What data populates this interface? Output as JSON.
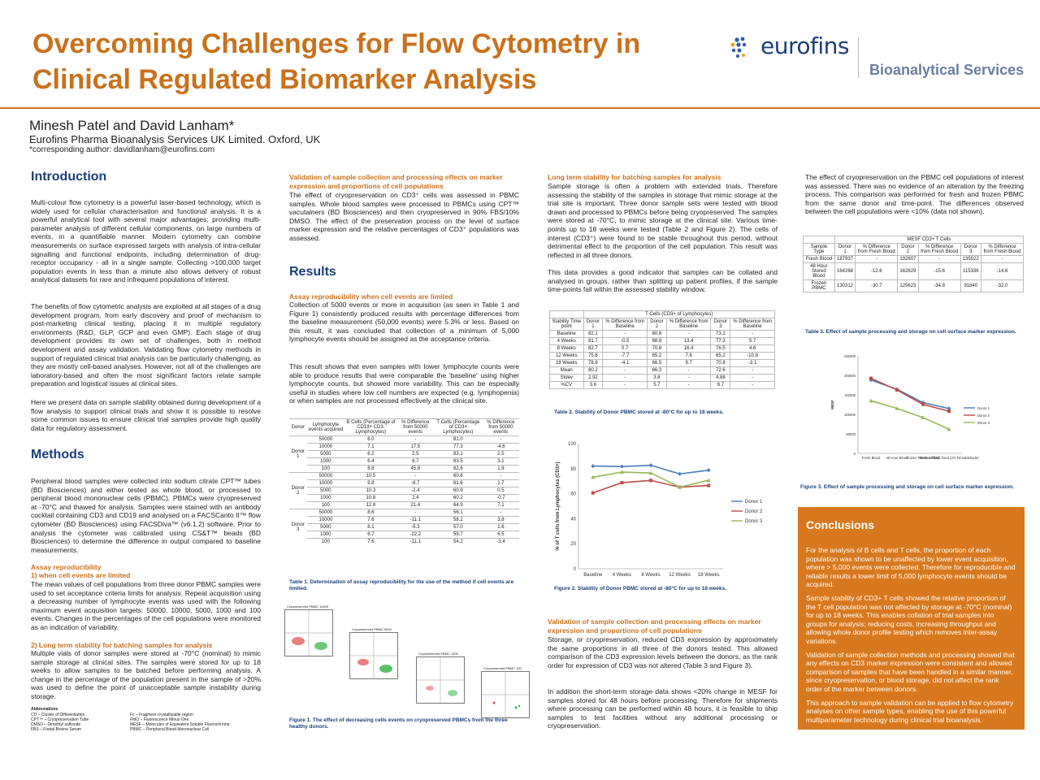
{
  "title_line1": "Overcoming Challenges for Flow Cytometry in",
  "title_line2": "Clinical Regulated Biomarker Analysis",
  "logo": {
    "brand": "eurofins",
    "division": "Bioanalytical Services"
  },
  "authors": "Minesh Patel and David Lanham*",
  "affiliation": "Eurofins Pharma Bioanalysis Services UK Limited. Oxford, UK",
  "corresponding": "*corresponding author: davidlanham@eurofins.com",
  "intro": {
    "heading": "Introduction",
    "p1": "Multi-colour flow cytometry is a powerful laser-based technology, which is widely used for cellular characterisation and functional analysis. It is a powerful analytical tool with several major advantages; providing multi-parameter analysis of different cellular components, on large numbers of events, in a quantifiable manner. Modern cytometry can combine measurements on surface expressed targets with analysis of intra-cellular signalling and functional endpoints, including determination of drug-receptor occupancy - all in a single sample. Collecting >100,000 target population events in less than a minute also allows delivery of robust analytical datasets for rare and infrequent populations of interest.",
    "p2": "The benefits of flow cytometric analysis are exploited at all stages of a drug development program, from early discovery and proof of mechanism to post-marketing clinical testing, placing it in multiple regulatory environments (R&D, GLP, GCP and even GMP). Each stage of drug development provides its own set of challenges, both in method development and assay validation. Validating flow cytometry methods in support of regulated clinical trial analysis can be particularly challenging, as they are mostly cell-based analyses. However, not all of the challenges are laboratory-based and often the most significant factors relate sample preparation and logistical issues at clinical sites.",
    "p3": "Here we present data on sample stability obtained during development of a flow analysis to support clinical trials and show it is possible to resolve some common issues to ensure clinical trial samples provide high quality data for regulatory assessment."
  },
  "methods": {
    "heading": "Methods",
    "p1": "Peripheral blood samples were collected into sodium citrate CPT™ tubes (BD Biosciences) and either tested as whole blood, or processed to peripheral blood mononuclear cells (PBMC). PBMCs were cryopreserved at -70°C and thawed for analysis. Samples were stained with an antibody cocktail containing CD3 and CD19 and analysed on a FACSCanto II™ flow cytometer (BD Biosciences) using FACSDiva™ (v6.1.2) software. Prior to analysis the cytometer was calibrated using CS&T™ beads (BD Biosciences) to determine the difference in output compared to baseline measurements.",
    "sub1": "Assay reproducibility",
    "sub1b": "1) when cell events are limited",
    "p2": "The mean values of cell populations from three donor PBMC samples were used to set acceptance criteria limits for analysis. Repeat acquisition using a decreasing number of lymphocyte events was used with the following maximum event acquisition targets: 50000, 10000, 5000, 1000 and 100 events. Changes in the percentages of the cell populations were monitored as an indication of variability.",
    "sub2": "2) Long term stability for batching samples for analysis",
    "p3": "Multiple vials of donor samples were stored at -70°C (nominal) to mimic sample storage at clinical sites. The samples were stored for up to 18 weeks to allow samples to be batched before performing analysis. A change in the percentage of the population present in the sample of >20% was used to define the point of unacceptable sample instability during storage.",
    "abbr_heading": "Abbreviations",
    "abbr_left": [
      "CD – Cluster of Differentiation",
      "CPT™ – Cryopreservation Tube",
      "DMSO – Dimethyl sulfoxide",
      "FBS – Foetal Bovine Serum"
    ],
    "abbr_right": [
      "Fc – Fragment crystallizable region",
      "FMO – Fluorescence Minus One",
      "MESF – Molecules of Equivalent Soluble Fluorochrome",
      "PBMC – Peripheral Blood Mononuclear Cell"
    ]
  },
  "col2": {
    "sub_validation": "Validation of sample collection and processing effects on marker expression and proportions of cell populations",
    "p_validation": "The effect of cryopreservation on CD3⁺ cells was assessed in PBMC samples. Whole blood samples were processed to PBMCs using CPT™ vacutainers (BD Biosciences) and then cryopreserved in 90% FBS/10% DMSO. The effect of the preservation process on the level of surface marker expression and the relative percentages of CD3⁺ populations was assessed.",
    "results_heading": "Results",
    "sub_repro": "Assay reproducibility when cell events are limited",
    "p_repro1": "Collection of 5000 events or more in acquisition (as seen in Table 1 and Figure 1) consistently produced results with percentage differences from the baseline measurement (50,000 events) were 5.3% or less. Based on this result, it was concluded that collection of a minimum of 5,000 lymphocyte events should be assigned as the acceptance criteria.",
    "p_repro2": "This result shows that even samples with lower lymphocyte counts were able to produce results that were comparable the 'baseline' using higher lymphocyte counts, but showed more variability. This can be especially useful in studies where low cell numbers are expected (e.g. lymphopenia) or when samples are not processed effectively at the clinical site.",
    "table1_caption": "Table 1. Determination of assay reproducibility for the use of the method if cell events are limited.",
    "fig1_caption": "Figure 1. The effect of decreasing cells events on cryopreserved PBMCs from the three healthy donors.",
    "facs_labels": [
      "Cryopreserved PBMC 10000",
      "Cryopreserved PBMC 5000",
      "Cryopreserved PBMC 1000",
      "Cryopreserved PBMC 100"
    ]
  },
  "table1": {
    "headers": [
      "Donor",
      "Lymphocyte events acquired",
      "B Cells (Percentage of CD19+ CD3- Lymphocytes)",
      "% Difference from 50000 events",
      "T Cells (Percentage of CD3+ Lymphocytes)",
      "% Difference from 50000 events"
    ],
    "groups": [
      {
        "donor": "Donor 1",
        "rows": [
          [
            "50000",
            "6.0",
            "-",
            "81.0",
            "-"
          ],
          [
            "10000",
            "7.1",
            "17.5",
            "77.3",
            "-4.6"
          ],
          [
            "5000",
            "6.2",
            "2.5",
            "83.1",
            "2.5"
          ],
          [
            "1000",
            "6.4",
            "6.7",
            "83.5",
            "3.1"
          ],
          [
            "100",
            "8.8",
            "45.8",
            "82.6",
            "1.9"
          ]
        ]
      },
      {
        "donor": "Donor 2",
        "rows": [
          [
            "50000",
            "10.5",
            "-",
            "60.6",
            "-"
          ],
          [
            "10000",
            "9.8",
            "-6.7",
            "61.6",
            "1.7"
          ],
          [
            "5000",
            "10.3",
            "-2.4",
            "60.9",
            "0.5"
          ],
          [
            "1000",
            "10.8",
            "2.4",
            "60.2",
            "-0.7"
          ],
          [
            "100",
            "12.8",
            "21.4",
            "64.9",
            "7.1"
          ]
        ]
      },
      {
        "donor": "Donor 3",
        "rows": [
          [
            "50000",
            "8.6",
            "-",
            "56.1",
            "-"
          ],
          [
            "10000",
            "7.6",
            "-11.1",
            "58.2",
            "3.8"
          ],
          [
            "5000",
            "8.1",
            "-5.3",
            "57.0",
            "1.6"
          ],
          [
            "1000",
            "6.7",
            "-22.2",
            "59.7",
            "6.5"
          ],
          [
            "100",
            "7.6",
            "-11.1",
            "54.2",
            "-3.4"
          ]
        ]
      }
    ]
  },
  "col3": {
    "sub_lt": "Long term stability for batching samples for analysis",
    "p_lt1": "Sample storage is often a problem with extended trials. Therefore assessing the stability of the samples in storage that mimic storage at the trial site is important. Three donor sample sets were tested with blood drawn and processed to PBMCs before being cryopreserved. The samples were stored at -70°C, to mimic storage at the clinical site. Various time-points up to 18 weeks were tested (Table 2 and Figure 2). The cells of interest (CD3⁺) were found to be stable throughout this period, without detrimental effect to the proportion of the cell population. This result was reflected in all three donors.",
    "p_lt2": "This data provides a good indicator that samples can be collated and analysed in groups, rather than splitting up patient profiles, if the sample time-points fall within the assessed stability window.",
    "table2_caption": "Table 2. Stability of Donor PBMC stored at -80°C for up to 18 weeks.",
    "fig2_caption": "Figure 2. Stability of Donor PBMC stored at -80°C for up to 18 weeks.",
    "sub_val2": "Validation of sample collection and processing effects on marker expression and proportions of cell populations",
    "p_val2a": "Storage, or cryopreservation, reduced CD3 expression by approximately the same proportions in all three of the donors tested. This allowed comparison of the CD3 expression levels between the donors, as the rank order for expression of CD3 was not altered (Table 3 and Figure 3).",
    "p_val2b": "In addition the short-term storage data shows <20% change in MESF for samples stored for 48 hours before processing. Therefore for shipments where processing can be performed within 48 hours, it is feasible to ship samples to test facilities without any additional processing or cryopreservation."
  },
  "table2": {
    "super": "T Cells (CD3+ of Lymphocytes)",
    "headers": [
      "Stability Time point",
      "Donor 1",
      "% Difference from Baseline",
      "Donor 2",
      "% Difference from Baseline",
      "Donor 3",
      "% Difference from Baseline"
    ],
    "rows": [
      [
        "Baseline",
        "82.1",
        "-",
        "60.6",
        "-",
        "73.1",
        "-"
      ],
      [
        "4 Weeks",
        "81.7",
        "-0.5",
        "68.8",
        "13.4",
        "77.3",
        "5.7"
      ],
      [
        "8 Weeks",
        "82.7",
        "0.7",
        "70.6",
        "16.4",
        "76.5",
        "4.6"
      ],
      [
        "12 Weeks",
        "75.8",
        "-7.7",
        "65.2",
        "7.6",
        "65.2",
        "-10.8"
      ],
      [
        "18 Weeks",
        "78.8",
        "-4.1",
        "66.5",
        "9.7",
        "70.8",
        "-3.1"
      ],
      [
        "Mean",
        "80.2",
        "-",
        "66.3",
        "-",
        "72.6",
        "-"
      ],
      [
        "Stdev",
        "2.92",
        "-",
        "3.8",
        "-",
        "4.88",
        "-"
      ],
      [
        "%CV",
        "3.6",
        "-",
        "5.7",
        "-",
        "6.7",
        "-"
      ]
    ]
  },
  "col4": {
    "p_cryo": "The effect of cryopreservation on the PBMC cell populations of interest was assessed. There was no evidence of an alteration by the freezing process. This comparison was performed for fresh and frozen PBMC from the same donor and time-point. The differences observed between the cell populations were <10% (data not shown).",
    "table3_caption": "Table 3. Effect of sample processing and storage on cell surface marker expression.",
    "fig3_caption": "Figure 3. Effect of sample processing and storage on cell surface marker expression."
  },
  "table3": {
    "super": "MESF CD3+ T Cells",
    "headers": [
      "Sample Type",
      "Donor 1",
      "% Difference from Fresh Blood",
      "Donor 2",
      "% Difference from Fresh Blood",
      "Donor 3",
      "% Difference from Fresh Blood"
    ],
    "rows": [
      [
        "Fresh Blood",
        "187937",
        "-",
        "192607",
        "-",
        "135022",
        "-"
      ],
      [
        "48 Hour Stored Blood",
        "164268",
        "-12.6",
        "162629",
        "-15.6",
        "115336",
        "-14.6"
      ],
      [
        "Frozen PBMC",
        "130312",
        "-30.7",
        "125623",
        "-34.8",
        "91840",
        "-32.0"
      ]
    ]
  },
  "conclusions": {
    "heading": "Conclusions",
    "items": [
      "For the analysis of B cells and T cells, the proportion of each population was shown to be unaffected by lower event acquisition, where > 5,000 events were collected. Therefore for reproducible and reliable results a lower limit of 5,000 lymphocyte events should be acquired.",
      "Sample stability of CD3+ T cells showed the relative proportion of the T cell population was not affected by storage at -70°C (nominal) for up to 18 weeks. This enables collation of trial samples into groups for analysis; reducing costs, increasing throughput and allowing whole donor profile testing which removes inter-assay variations.",
      "Validation of sample collection methods and processing showed that any effects on CD3 marker expression were consistent and allowed comparison of samples that have been handled in a similar manner, since cryopreservation, or blood storage, did not affect the rank order of the marker between donors.",
      "This approach to sample validation can be applied to flow cytometry analyses on other sample types, enabling the use of this powerful multiparameter technology during clinical trial bioanalysis."
    ]
  },
  "chart_data": [
    {
      "type": "line",
      "title": "",
      "ylabel": "% of T cells from Lymphocytes (CD3+)",
      "categories": [
        "Baseline",
        "4 Weeks",
        "8 Weeks",
        "12 Weeks",
        "18 Weeks"
      ],
      "ylim": [
        0,
        100
      ],
      "yticks": [
        0,
        20,
        40,
        60,
        80,
        100
      ],
      "legend": "right",
      "series": [
        {
          "name": "Donor 1",
          "values": [
            82.1,
            81.7,
            82.7,
            75.8,
            78.8
          ],
          "color": "#4a7ebb"
        },
        {
          "name": "Donor 2",
          "values": [
            60.6,
            68.8,
            70.6,
            65.2,
            66.5
          ],
          "color": "#be4b48"
        },
        {
          "name": "Donor 3",
          "values": [
            73.1,
            77.3,
            76.5,
            65.2,
            70.8
          ],
          "color": "#98b954"
        }
      ]
    },
    {
      "type": "line",
      "title": "",
      "ylabel": "MESF",
      "categories": [
        "Fresh Blood",
        "48 Hour Blood",
        "Frozen PBMC unfixed",
        "Frozen PBMC fixed (2% formaldehyde)"
      ],
      "ylim": [
        0,
        250000
      ],
      "yticks": [
        0,
        50000,
        100000,
        150000,
        200000,
        250000
      ],
      "legend": "right",
      "series": [
        {
          "name": "Donor 1",
          "values": [
            187937,
            164268,
            130312,
            115000
          ],
          "color": "#4a7ebb"
        },
        {
          "name": "Donor 2",
          "values": [
            192607,
            162629,
            125623,
            108000
          ],
          "color": "#be4b48"
        },
        {
          "name": "Donor 3",
          "values": [
            135022,
            115336,
            91840,
            62000
          ],
          "color": "#98b954"
        }
      ]
    }
  ]
}
